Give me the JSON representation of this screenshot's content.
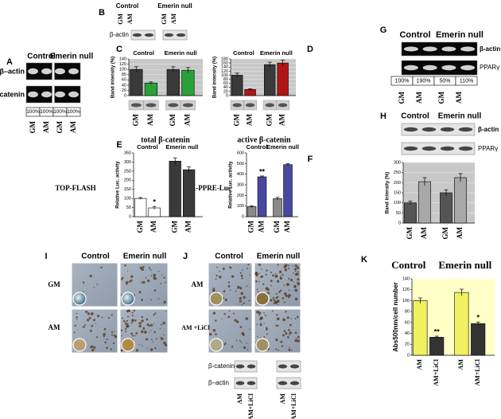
{
  "panels": {
    "A": {
      "label": "A",
      "groups": [
        "Control",
        "Emerin null"
      ],
      "rows": [
        "β–actin",
        "β–catenin"
      ],
      "percents": [
        "100%",
        "100%",
        "100%",
        "100%"
      ],
      "lanes": [
        "GM",
        "AM",
        "GM",
        "AM"
      ]
    },
    "B": {
      "label": "B",
      "groups": [
        "Control",
        "Emerin null"
      ],
      "lanes": [
        "GM",
        "AM",
        "GM",
        "AM"
      ],
      "rows": [
        "β-actin"
      ]
    },
    "C": {
      "label": "C",
      "caption": "total β-catenin"
    },
    "D": {
      "label": "D",
      "caption": "active β-catenin"
    },
    "E": {
      "label": "E",
      "assay": "TOP-FLASH"
    },
    "F": {
      "label": "F",
      "assay": "TK-PPRE-Luc"
    },
    "G": {
      "label": "G",
      "groups": [
        "Control",
        "Emerin null"
      ],
      "rows": [
        "β-actin",
        "PPARγ"
      ],
      "percents": [
        "100%",
        "190%",
        "50%",
        "110%"
      ],
      "lanes": [
        "GM",
        "AM",
        "GM",
        "AM"
      ]
    },
    "H": {
      "label": "H",
      "groups": [
        "Control",
        "Emerin null"
      ],
      "rows": [
        "β-actin",
        "PPARγ"
      ]
    },
    "I": {
      "label": "I",
      "groups": [
        "Control",
        "Emerin null"
      ],
      "rows": [
        "GM",
        "AM"
      ]
    },
    "J": {
      "label": "J",
      "groups": [
        "Control",
        "Emerin null"
      ],
      "rows": [
        "AM",
        "AM +LiCl"
      ],
      "blot_rows": [
        "β-catenin",
        "β–actin"
      ],
      "blot_lanes": [
        "AM",
        "AM+LiCl",
        "AM",
        "AM+LiCl"
      ]
    },
    "K": {
      "label": "K"
    }
  },
  "chart_data": [
    {
      "type": "bar",
      "groups": [
        "Control",
        "Emerin null"
      ],
      "categories": [
        "GM",
        "AM",
        "GM",
        "AM"
      ],
      "values": [
        100,
        48,
        100,
        97
      ],
      "errors": [
        10,
        4,
        10,
        10
      ],
      "colors": [
        "#3a3a3a",
        "#2aa03a",
        "#3a3a3a",
        "#2aa03a"
      ],
      "ylim": [
        0,
        140
      ],
      "yticks": [
        0,
        20,
        40,
        60,
        80,
        100,
        120,
        140
      ],
      "y_label": "Band intensity (%)",
      "plot_background": "#c8c8c8",
      "grid": true
    },
    {
      "type": "bar",
      "groups": [
        "Control",
        "Emerin null"
      ],
      "categories": [
        "GM",
        "AM",
        "GM",
        "AM"
      ],
      "values": [
        100,
        30,
        152,
        160
      ],
      "errors": [
        10,
        3,
        12,
        14
      ],
      "colors": [
        "#3a3a3a",
        "#b01515",
        "#3a3a3a",
        "#b01515"
      ],
      "ylim": [
        0,
        180
      ],
      "yticks": [
        0,
        20,
        40,
        60,
        80,
        100,
        120,
        140,
        160,
        180
      ],
      "y_label": "Band intensity (%)",
      "plot_background": "#c8c8c8",
      "grid": true
    },
    {
      "type": "bar",
      "groups": [
        "Control",
        "Emerin null"
      ],
      "categories": [
        "GM",
        "AM",
        "GM",
        "AM"
      ],
      "values": [
        100,
        48,
        305,
        258
      ],
      "errors": [
        5,
        8,
        18,
        15
      ],
      "colors": [
        "#ffffff",
        "#ffffff",
        "#3a3a3a",
        "#3a3a3a"
      ],
      "ylim": [
        0,
        350
      ],
      "yticks": [
        0,
        50,
        100,
        150,
        200,
        250,
        300,
        350
      ],
      "y_label": "Relative Luc. activity",
      "significance": [
        null,
        "*",
        null,
        null
      ],
      "grid": false
    },
    {
      "type": "bar",
      "groups": [
        "Control",
        "Emerin null"
      ],
      "categories": [
        "GM",
        "AM",
        "GM",
        "AM"
      ],
      "values": [
        95,
        375,
        170,
        490
      ],
      "errors": [
        8,
        8,
        12,
        10
      ],
      "colors": [
        "#8a8a8a",
        "#4848a0",
        "#8a8a8a",
        "#4848a0"
      ],
      "ylim": [
        0,
        600
      ],
      "yticks": [
        0,
        100,
        200,
        300,
        400,
        500,
        600
      ],
      "y_label": "Relative Luc. activity",
      "significance": [
        null,
        "**",
        null,
        null
      ],
      "grid": false
    },
    {
      "type": "bar",
      "categories": [
        "GM",
        "AM",
        "GM",
        "AM"
      ],
      "values": [
        100,
        205,
        150,
        225
      ],
      "errors": [
        8,
        20,
        15,
        20
      ],
      "colors": [
        "#555555",
        "#a8a8a8",
        "#555555",
        "#a8a8a8"
      ],
      "ylim": [
        0,
        300
      ],
      "yticks": [
        0,
        50,
        100,
        150,
        200,
        250,
        300
      ],
      "y_label": "Band intensity (%)",
      "plot_background": "#c8c8c8",
      "grid": true
    },
    {
      "type": "bar",
      "groups": [
        "Control",
        "Emerin null"
      ],
      "categories": [
        "AM",
        "AM+LiCl",
        "AM",
        "AM+LiCl"
      ],
      "values": [
        100,
        33,
        115,
        58
      ],
      "errors": [
        5,
        2,
        6,
        3
      ],
      "colors": [
        "#f0f060",
        "#333333",
        "#f0f060",
        "#333333"
      ],
      "ylim": [
        0,
        140
      ],
      "yticks": [
        0,
        20,
        40,
        60,
        80,
        100,
        120,
        140
      ],
      "y_label": "Abs500nm/cell number",
      "significance": [
        null,
        "**",
        null,
        "*"
      ],
      "plot_background": "#ffffc8",
      "grid": false
    }
  ]
}
